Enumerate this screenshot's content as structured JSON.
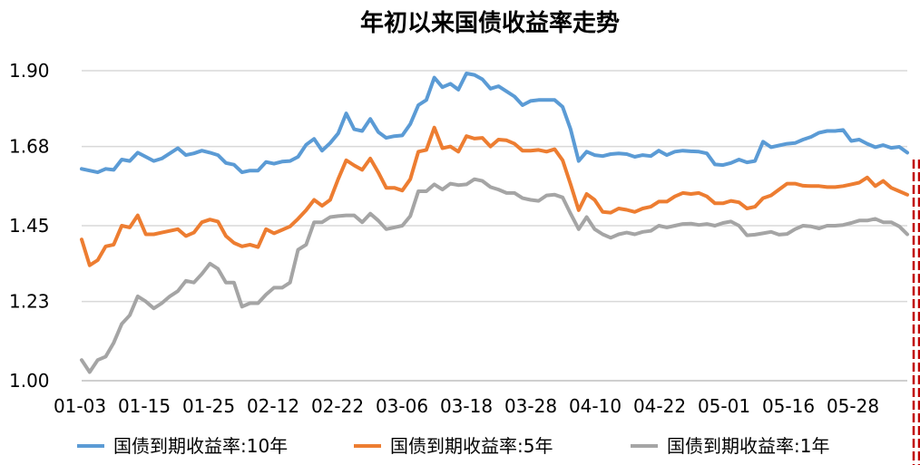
{
  "chart_data": {
    "type": "line",
    "title": "年初以来国债收益率走势",
    "xlabel": "",
    "ylabel": "",
    "ylim": [
      1.0,
      1.9
    ],
    "y_ticks": [
      "1.00",
      "1.23",
      "1.45",
      "1.68",
      "1.90"
    ],
    "x_tick_labels": [
      "01-03",
      "01-15",
      "01-25",
      "02-12",
      "02-22",
      "03-06",
      "03-18",
      "03-28",
      "04-10",
      "04-22",
      "05-01",
      "05-16",
      "05-28"
    ],
    "grid": true,
    "legend_position": "bottom",
    "series": [
      {
        "name": "国债到期收益率:10年",
        "color": "#5B9BD5",
        "values": [
          1.615,
          1.61,
          1.605,
          1.615,
          1.612,
          1.642,
          1.638,
          1.662,
          1.65,
          1.638,
          1.645,
          1.66,
          1.675,
          1.655,
          1.66,
          1.668,
          1.662,
          1.655,
          1.632,
          1.627,
          1.605,
          1.61,
          1.61,
          1.635,
          1.63,
          1.636,
          1.638,
          1.65,
          1.685,
          1.702,
          1.668,
          1.69,
          1.718,
          1.776,
          1.73,
          1.725,
          1.76,
          1.722,
          1.705,
          1.71,
          1.712,
          1.745,
          1.8,
          1.815,
          1.88,
          1.852,
          1.862,
          1.845,
          1.892,
          1.888,
          1.875,
          1.848,
          1.855,
          1.84,
          1.825,
          1.8,
          1.812,
          1.815,
          1.815,
          1.815,
          1.795,
          1.73,
          1.638,
          1.665,
          1.655,
          1.652,
          1.658,
          1.66,
          1.658,
          1.65,
          1.655,
          1.652,
          1.668,
          1.655,
          1.665,
          1.668,
          1.666,
          1.665,
          1.66,
          1.628,
          1.626,
          1.632,
          1.642,
          1.634,
          1.638,
          1.694,
          1.678,
          1.683,
          1.688,
          1.69,
          1.7,
          1.708,
          1.72,
          1.725,
          1.725,
          1.728,
          1.696,
          1.7,
          1.688,
          1.678,
          1.684,
          1.676,
          1.679,
          1.662
        ]
      },
      {
        "name": "国债到期收益率:5年",
        "color": "#ED7D31",
        "values": [
          1.41,
          1.335,
          1.35,
          1.39,
          1.395,
          1.45,
          1.445,
          1.48,
          1.425,
          1.425,
          1.43,
          1.435,
          1.44,
          1.42,
          1.43,
          1.46,
          1.468,
          1.462,
          1.42,
          1.4,
          1.39,
          1.395,
          1.388,
          1.44,
          1.428,
          1.438,
          1.448,
          1.47,
          1.495,
          1.525,
          1.508,
          1.525,
          1.585,
          1.64,
          1.625,
          1.612,
          1.645,
          1.605,
          1.56,
          1.56,
          1.552,
          1.585,
          1.665,
          1.67,
          1.735,
          1.675,
          1.68,
          1.665,
          1.71,
          1.703,
          1.705,
          1.68,
          1.7,
          1.698,
          1.688,
          1.668,
          1.668,
          1.67,
          1.665,
          1.672,
          1.64,
          1.57,
          1.495,
          1.542,
          1.525,
          1.49,
          1.488,
          1.5,
          1.496,
          1.49,
          1.5,
          1.505,
          1.52,
          1.52,
          1.535,
          1.545,
          1.542,
          1.545,
          1.535,
          1.515,
          1.515,
          1.522,
          1.518,
          1.5,
          1.505,
          1.53,
          1.538,
          1.555,
          1.572,
          1.572,
          1.566,
          1.565,
          1.565,
          1.562,
          1.562,
          1.565,
          1.57,
          1.575,
          1.59,
          1.565,
          1.58,
          1.56,
          1.55,
          1.54
        ]
      },
      {
        "name": "国债到期收益率:1年",
        "color": "#A5A5A5",
        "values": [
          1.06,
          1.025,
          1.06,
          1.07,
          1.11,
          1.165,
          1.19,
          1.245,
          1.23,
          1.21,
          1.225,
          1.245,
          1.26,
          1.29,
          1.285,
          1.31,
          1.34,
          1.325,
          1.285,
          1.285,
          1.215,
          1.225,
          1.225,
          1.25,
          1.27,
          1.27,
          1.285,
          1.38,
          1.395,
          1.46,
          1.46,
          1.475,
          1.478,
          1.48,
          1.48,
          1.46,
          1.485,
          1.465,
          1.44,
          1.445,
          1.45,
          1.478,
          1.55,
          1.55,
          1.57,
          1.555,
          1.572,
          1.568,
          1.57,
          1.585,
          1.58,
          1.562,
          1.555,
          1.545,
          1.545,
          1.53,
          1.525,
          1.522,
          1.538,
          1.54,
          1.532,
          1.485,
          1.44,
          1.475,
          1.44,
          1.425,
          1.415,
          1.425,
          1.43,
          1.425,
          1.432,
          1.435,
          1.45,
          1.445,
          1.45,
          1.455,
          1.456,
          1.452,
          1.455,
          1.45,
          1.458,
          1.462,
          1.45,
          1.422,
          1.424,
          1.428,
          1.432,
          1.424,
          1.426,
          1.44,
          1.45,
          1.448,
          1.442,
          1.45,
          1.45,
          1.452,
          1.458,
          1.465,
          1.465,
          1.47,
          1.46,
          1.46,
          1.448,
          1.425
        ]
      }
    ]
  }
}
